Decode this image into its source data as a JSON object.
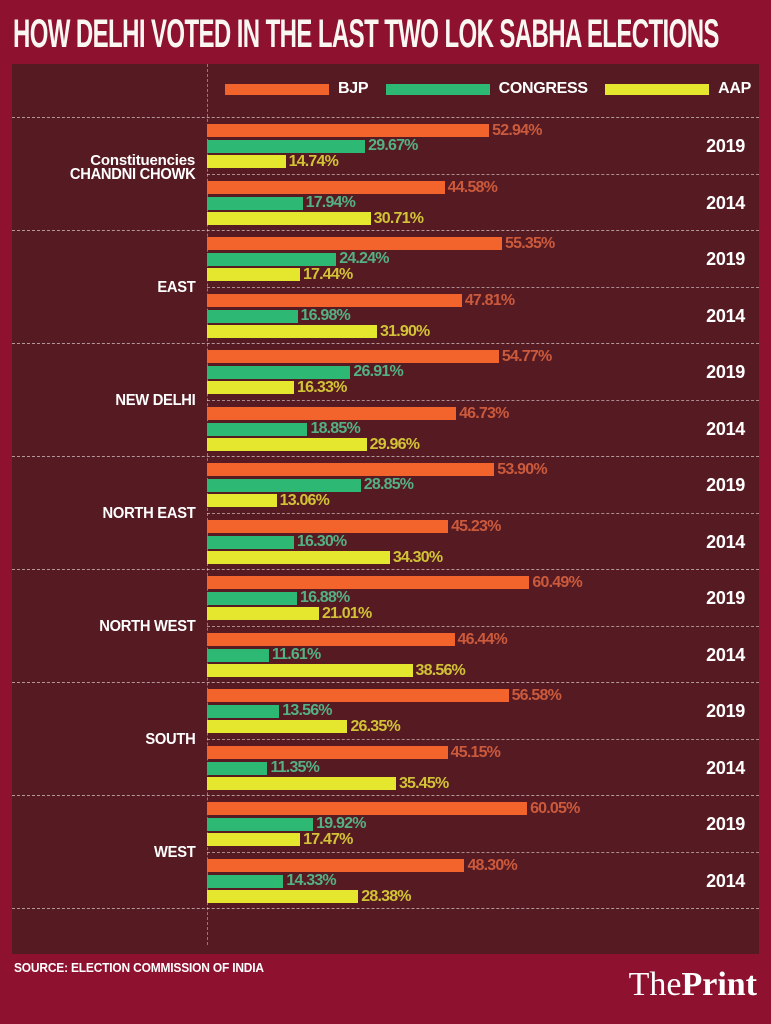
{
  "header": {
    "title": "HOW DELHI VOTED IN THE LAST TWO LOK SABHA ELECTIONS"
  },
  "legend": {
    "axis_label": "Constituencies",
    "items": [
      {
        "label": "BJP",
        "color": "#f3632c"
      },
      {
        "label": "CONGRESS",
        "color": "#2db873"
      },
      {
        "label": "AAP",
        "color": "#e5e72e"
      }
    ]
  },
  "colors": {
    "page_bg": "#8e1230",
    "panel_bg": "#561a22",
    "text": "#ffffff"
  },
  "chart_data": {
    "type": "bar",
    "orientation": "horizontal",
    "title": "HOW DELHI VOTED IN THE LAST TWO LOK SABHA ELECTIONS",
    "unit": "%",
    "xlim": [
      0,
      100
    ],
    "grid": false,
    "legend_position": "top",
    "series": [
      "BJP",
      "CONGRESS",
      "AAP"
    ],
    "bar_colors": [
      "#f3632c",
      "#2db873",
      "#e5e72e"
    ],
    "value_label_colors": [
      "#cb5a3c",
      "#54b183",
      "#d2c336"
    ],
    "groups": [
      {
        "constituency": "CHANDNI CHOWK",
        "years": [
          {
            "year": "2019",
            "values": [
              52.94,
              29.67,
              14.74
            ]
          },
          {
            "year": "2014",
            "values": [
              44.58,
              17.94,
              30.71
            ]
          }
        ]
      },
      {
        "constituency": "EAST",
        "years": [
          {
            "year": "2019",
            "values": [
              55.35,
              24.24,
              17.44
            ]
          },
          {
            "year": "2014",
            "values": [
              47.81,
              16.98,
              31.9
            ]
          }
        ]
      },
      {
        "constituency": "NEW DELHI",
        "years": [
          {
            "year": "2019",
            "values": [
              54.77,
              26.91,
              16.33
            ]
          },
          {
            "year": "2014",
            "values": [
              46.73,
              18.85,
              29.96
            ]
          }
        ]
      },
      {
        "constituency": "NORTH EAST",
        "years": [
          {
            "year": "2019",
            "values": [
              53.9,
              28.85,
              13.06
            ]
          },
          {
            "year": "2014",
            "values": [
              45.23,
              16.3,
              34.3
            ]
          }
        ]
      },
      {
        "constituency": "NORTH WEST",
        "years": [
          {
            "year": "2019",
            "values": [
              60.49,
              16.88,
              21.01
            ]
          },
          {
            "year": "2014",
            "values": [
              46.44,
              11.61,
              38.56
            ]
          }
        ]
      },
      {
        "constituency": "SOUTH",
        "years": [
          {
            "year": "2019",
            "values": [
              56.58,
              13.56,
              26.35
            ]
          },
          {
            "year": "2014",
            "values": [
              45.15,
              11.35,
              35.45
            ]
          }
        ]
      },
      {
        "constituency": "WEST",
        "years": [
          {
            "year": "2019",
            "values": [
              60.05,
              19.92,
              17.47
            ]
          },
          {
            "year": "2014",
            "values": [
              48.3,
              14.33,
              28.38
            ]
          }
        ]
      }
    ]
  },
  "footer": {
    "source": "SOURCE: ELECTION COMMISSION OF INDIA",
    "logo_prefix": "The",
    "logo_suffix": "Print"
  }
}
